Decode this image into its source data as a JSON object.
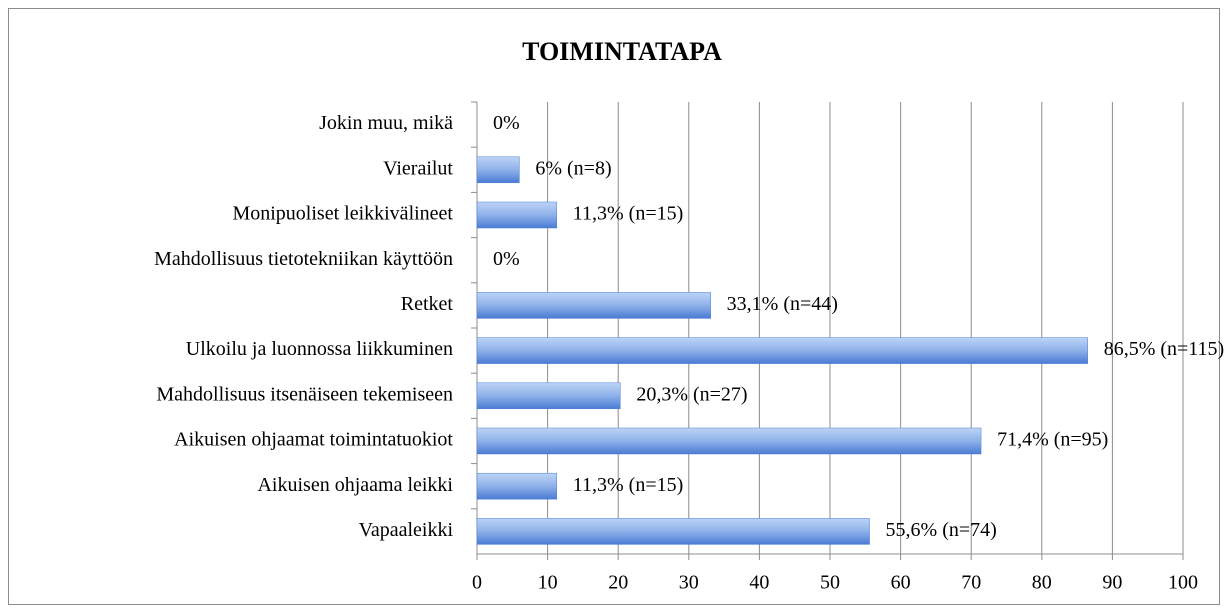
{
  "chart_data": {
    "type": "bar",
    "orientation": "horizontal",
    "title": "TOIMINTATAPA",
    "categories": [
      "Jokin muu, mikä",
      "Vierailut",
      "Monipuoliset leikkivälineet",
      "Mahdollisuus tietotekniikan käyttöön",
      "Retket",
      "Ulkoilu ja luonnossa liikkuminen",
      "Mahdollisuus itsenäiseen tekemiseen",
      "Aikuisen ohjaamat toimintatuokiot",
      "Aikuisen ohjaama leikki",
      "Vapaaleikki"
    ],
    "values": [
      0,
      6,
      11.3,
      0,
      33.1,
      86.5,
      20.3,
      71.4,
      11.3,
      55.6
    ],
    "value_labels": [
      "0%",
      "6% (n=8)",
      "11,3% (n=15)",
      "0%",
      "33,1% (n=44)",
      "86,5% (n=115)",
      "20,3% (n=27)",
      "71,4% (n=95)",
      "11,3% (n=15)",
      "55,6% (n=74)"
    ],
    "color": "#4f81d9",
    "xlim": [
      0,
      100
    ],
    "xticks": [
      0,
      10,
      20,
      30,
      40,
      50,
      60,
      70,
      80,
      90,
      100
    ],
    "grid": true
  }
}
